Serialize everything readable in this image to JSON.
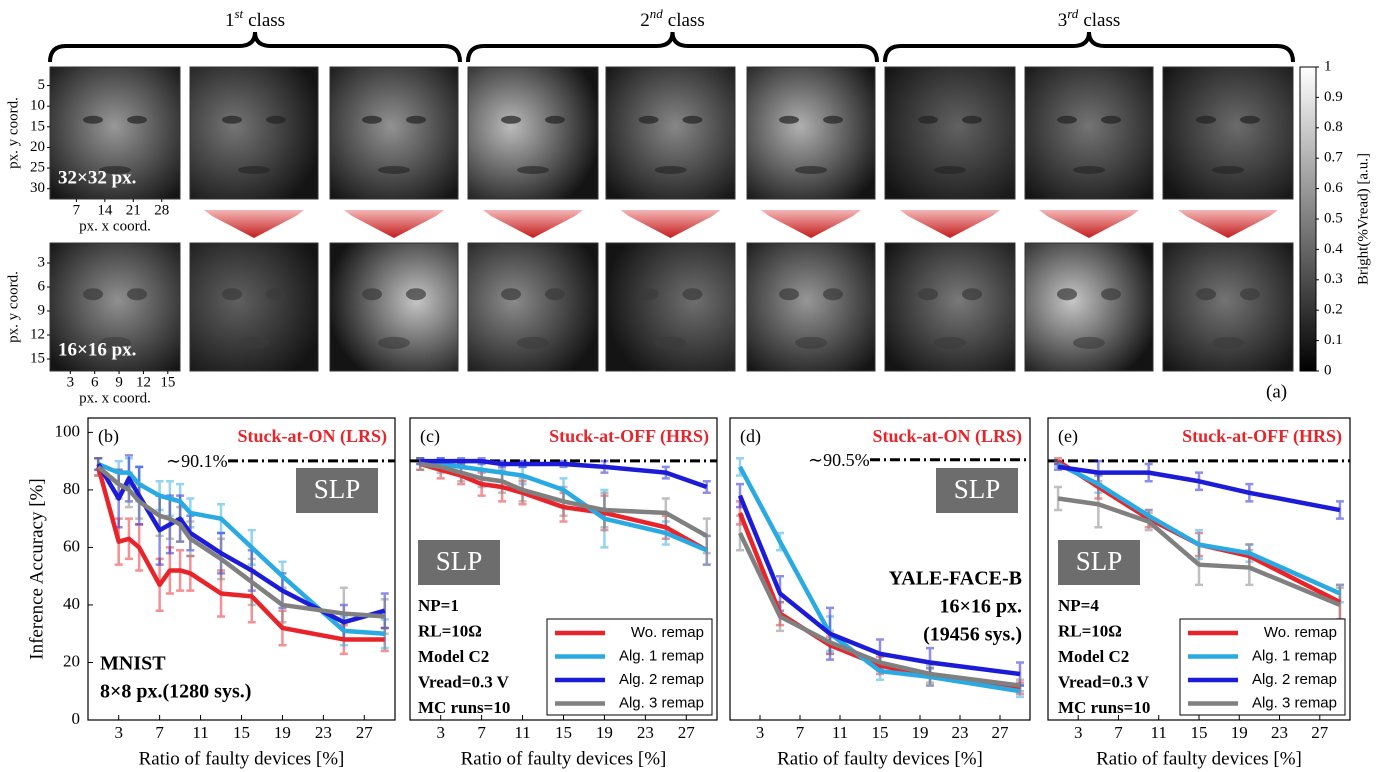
{
  "image_panel": {
    "classes": [
      {
        "ordinal": "1",
        "suffix": "st",
        "word": "class"
      },
      {
        "ordinal": "2",
        "suffix": "nd",
        "word": "class"
      },
      {
        "ordinal": "3",
        "suffix": "rd",
        "word": "class"
      }
    ],
    "rows": [
      {
        "size_label": "32×32 px.",
        "y_axis_label": "px. y coord.",
        "x_axis_label": "px. x coord.",
        "lim": [
          0.5,
          32.5
        ],
        "yticks": [
          5,
          10,
          15,
          20,
          25,
          30
        ],
        "xticks": [
          7,
          14,
          21,
          28
        ]
      },
      {
        "size_label": "16×16 px.",
        "y_axis_label": "px. y coord.",
        "x_axis_label": "px. x coord.",
        "lim": [
          0.5,
          16.5
        ],
        "yticks": [
          3,
          6,
          9,
          12,
          15
        ],
        "xticks": [
          3,
          6,
          9,
          12,
          15
        ]
      }
    ],
    "colorbar": {
      "label": "Bright(%Vread) [a.u.]",
      "lim": [
        0,
        1
      ],
      "ticks": [
        0,
        0.1,
        0.2,
        0.3,
        0.4,
        0.5,
        0.6,
        0.7,
        0.8,
        0.9,
        1
      ]
    },
    "panel_label": "(a)"
  },
  "chart_data": [
    {
      "type": "line",
      "panel_label": "(b)",
      "fault_label": "Stuck-at-ON (LRS)",
      "model_label": "SLP",
      "notes": [
        "MNIST",
        "8×8 px.(1280 sys.)"
      ],
      "ylabel": "Inference Accuracy [%]",
      "xlabel": "Ratio of faulty devices [%]",
      "ref_line": 90.1,
      "ref_label": "∼90.1%",
      "x": [
        1,
        3,
        4,
        5,
        7,
        8,
        9,
        10,
        13,
        16,
        19,
        25,
        29
      ],
      "xlim": [
        0,
        30
      ],
      "xticks": [
        3,
        7,
        11,
        15,
        19,
        23,
        27
      ],
      "ylim": [
        0,
        105
      ],
      "yticks": [
        0,
        20,
        40,
        60,
        80,
        100
      ],
      "series": [
        {
          "color": "#e8242a",
          "values": [
            88,
            62,
            63,
            60,
            47,
            52,
            52,
            51,
            44,
            43,
            32,
            28,
            28
          ],
          "errors": [
            3,
            8,
            7,
            8,
            9,
            8,
            7,
            6,
            8,
            9,
            6,
            5,
            4
          ]
        },
        {
          "color": "#2aaae2",
          "values": [
            89,
            86,
            86,
            82,
            78,
            77,
            76,
            72,
            70,
            60,
            50,
            31,
            30
          ],
          "errors": [
            2,
            4,
            5,
            6,
            5,
            6,
            6,
            5,
            5,
            6,
            5,
            5,
            5
          ]
        },
        {
          "color": "#1c1cd8",
          "values": [
            89,
            77,
            84,
            78,
            66,
            68,
            70,
            65,
            58,
            52,
            45,
            34,
            38
          ],
          "errors": [
            2,
            10,
            8,
            10,
            12,
            10,
            8,
            6,
            7,
            7,
            6,
            6,
            6
          ]
        },
        {
          "color": "#808080",
          "values": [
            88,
            82,
            80,
            76,
            71,
            70,
            68,
            63,
            56,
            48,
            40,
            37,
            36
          ],
          "errors": [
            3,
            5,
            6,
            6,
            7,
            7,
            6,
            6,
            7,
            8,
            6,
            9,
            6
          ]
        }
      ]
    },
    {
      "type": "line",
      "panel_label": "(c)",
      "fault_label": "Stuck-at-OFF (HRS)",
      "model_label": "SLP",
      "notes": [
        "NP=1",
        "RL=10Ω",
        "Model C2",
        "Vread=0.3 V",
        "MC runs=10"
      ],
      "xlabel": "Ratio of faulty devices [%]",
      "ref_line": 90.1,
      "legend": "lower right",
      "x": [
        1,
        3,
        5,
        7,
        9,
        11,
        15,
        19,
        25,
        29
      ],
      "xlim": [
        0,
        30
      ],
      "xticks": [
        3,
        7,
        11,
        15,
        19,
        23,
        27
      ],
      "ylim": [
        0,
        105
      ],
      "series": [
        {
          "name": "Wo. remap",
          "color": "#e8242a",
          "values": [
            89,
            87,
            85,
            82,
            81,
            79,
            74,
            72,
            67,
            59
          ],
          "errors": [
            2,
            3,
            3,
            4,
            5,
            4,
            5,
            6,
            4,
            5
          ]
        },
        {
          "name": "Alg. 1 remap",
          "color": "#2aaae2",
          "values": [
            90,
            89,
            88,
            87,
            86,
            85,
            80,
            70,
            65,
            59
          ],
          "errors": [
            1,
            2,
            2,
            3,
            3,
            3,
            4,
            10,
            4,
            5
          ]
        },
        {
          "name": "Alg. 2 remap",
          "color": "#1c1cd8",
          "values": [
            90,
            90,
            90,
            90,
            89,
            89,
            89,
            88,
            86,
            81
          ],
          "errors": [
            1,
            1,
            1,
            1,
            1,
            1,
            1,
            2,
            2,
            2
          ]
        },
        {
          "name": "Alg. 3 remap",
          "color": "#808080",
          "values": [
            89,
            88,
            86,
            84,
            83,
            80,
            76,
            73,
            72,
            64
          ],
          "errors": [
            2,
            2,
            3,
            3,
            4,
            4,
            5,
            6,
            5,
            6
          ]
        }
      ]
    },
    {
      "type": "line",
      "panel_label": "(d)",
      "fault_label": "Stuck-at-ON (LRS)",
      "model_label": "SLP",
      "notes": [
        "YALE-FACE-B",
        "16×16 px.",
        "(19456 sys.)"
      ],
      "xlabel": "Ratio of faulty devices [%]",
      "ref_line": 90.5,
      "ref_label": "∼90.5%",
      "x": [
        1,
        5,
        10,
        15,
        20,
        29
      ],
      "xlim": [
        0,
        30
      ],
      "xticks": [
        3,
        7,
        11,
        15,
        19,
        23,
        27
      ],
      "ylim": [
        0,
        105
      ],
      "series": [
        {
          "color": "#e8242a",
          "values": [
            72,
            37,
            26,
            19,
            15,
            11
          ],
          "errors": [
            4,
            4,
            3,
            3,
            3,
            2
          ]
        },
        {
          "color": "#2aaae2",
          "values": [
            88,
            62,
            30,
            17,
            15,
            10
          ],
          "errors": [
            3,
            3,
            6,
            3,
            3,
            2
          ]
        },
        {
          "color": "#1c1cd8",
          "values": [
            78,
            44,
            30,
            23,
            20,
            16
          ],
          "errors": [
            4,
            6,
            9,
            5,
            5,
            4
          ]
        },
        {
          "color": "#808080",
          "values": [
            65,
            36,
            27,
            20,
            16,
            12
          ],
          "errors": [
            6,
            5,
            4,
            3,
            3,
            2
          ]
        }
      ]
    },
    {
      "type": "line",
      "panel_label": "(e)",
      "fault_label": "Stuck-at-OFF (HRS)",
      "model_label": "SLP",
      "notes": [
        "NP=4",
        "RL=10Ω",
        "Model C2",
        "Vread=0.3 V",
        "MC runs=10"
      ],
      "xlabel": "Ratio of faulty devices [%]",
      "ref_line": 90.1,
      "legend": "lower right",
      "x": [
        1,
        5,
        10,
        15,
        20,
        29
      ],
      "xlim": [
        0,
        30
      ],
      "xticks": [
        3,
        7,
        11,
        15,
        19,
        23,
        27
      ],
      "ylim": [
        0,
        105
      ],
      "series": [
        {
          "name": "Wo. remap",
          "color": "#e8242a",
          "values": [
            90,
            81,
            70,
            61,
            57,
            41
          ],
          "errors": [
            1,
            4,
            3,
            4,
            4,
            6
          ]
        },
        {
          "name": "Alg. 1 remap",
          "color": "#2aaae2",
          "values": [
            89,
            82,
            71,
            61,
            58,
            44
          ],
          "errors": [
            1,
            3,
            2,
            5,
            3,
            3
          ]
        },
        {
          "name": "Alg. 2 remap",
          "color": "#1c1cd8",
          "values": [
            88,
            86,
            86,
            83,
            79,
            73
          ],
          "errors": [
            1,
            4,
            3,
            3,
            3,
            3
          ]
        },
        {
          "name": "Alg. 3 remap",
          "color": "#808080",
          "values": [
            77,
            75,
            69,
            54,
            53,
            40
          ],
          "errors": [
            4,
            8,
            3,
            7,
            6,
            6
          ]
        }
      ]
    }
  ]
}
